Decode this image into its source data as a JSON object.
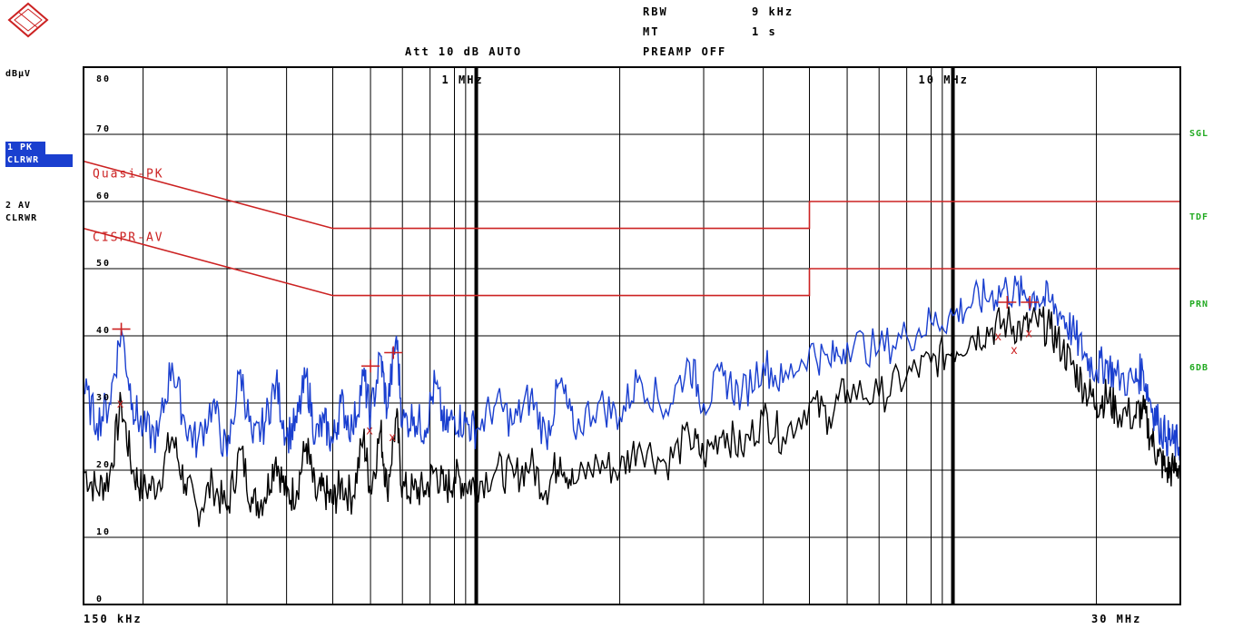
{
  "header": {
    "rbw_label": "RBW",
    "rbw_value": "9 kHz",
    "mt_label": "MT",
    "mt_value": "1 s",
    "att_text": "Att 10 dB AUTO",
    "preamp_text": "PREAMP OFF"
  },
  "left_panel": {
    "unit": "dBµV",
    "trace1_line1": "1 PK",
    "trace1_line2": "CLRWR",
    "trace2_line1": "2 AV",
    "trace2_line2": "CLRWR"
  },
  "right_panel": {
    "sgl": "SGL",
    "tdf": "TDF",
    "prn": "PRN",
    "db6": "6DB"
  },
  "colors": {
    "peak_trace": "#1a3fcf",
    "avg_trace": "#000000",
    "limit": "#cc2222",
    "status": "#22aa22"
  },
  "chart_data": {
    "type": "line",
    "x_scale": "log",
    "xlim_hz": [
      150000,
      30000000
    ],
    "ylim": [
      0,
      80
    ],
    "yticks": [
      0,
      10,
      20,
      30,
      40,
      50,
      60,
      70,
      80
    ],
    "ytick_labels": [
      "0",
      "10",
      "20",
      "30",
      "40",
      "50",
      "60",
      "70",
      "80"
    ],
    "x_start_label": "150 kHz",
    "x_end_label": "30 MHz",
    "x_marks": [
      {
        "freq_hz": 1000000,
        "label": "1 MHz"
      },
      {
        "freq_hz": 10000000,
        "label": "10 MHz"
      }
    ],
    "limit_lines": [
      {
        "name": "Quasi-PK",
        "points": [
          [
            150000,
            66
          ],
          [
            500000,
            56
          ],
          [
            5000000,
            56
          ],
          [
            5000000,
            60
          ],
          [
            30000000,
            60
          ]
        ]
      },
      {
        "name": "CISPR-AV",
        "points": [
          [
            150000,
            56
          ],
          [
            500000,
            46
          ],
          [
            5000000,
            46
          ],
          [
            5000000,
            50
          ],
          [
            30000000,
            50
          ]
        ]
      }
    ],
    "series": [
      {
        "values": [
          [
            150000,
            32
          ],
          [
            160000,
            27
          ],
          [
            170000,
            30
          ],
          [
            180000,
            41
          ],
          [
            190000,
            30
          ],
          [
            200000,
            26
          ],
          [
            215000,
            25
          ],
          [
            230000,
            36
          ],
          [
            245000,
            27
          ],
          [
            260000,
            24
          ],
          [
            280000,
            30
          ],
          [
            300000,
            22
          ],
          [
            320000,
            35
          ],
          [
            340000,
            24
          ],
          [
            360000,
            27
          ],
          [
            380000,
            33
          ],
          [
            400000,
            25
          ],
          [
            420000,
            27
          ],
          [
            440000,
            34
          ],
          [
            460000,
            25
          ],
          [
            480000,
            27
          ],
          [
            500000,
            24
          ],
          [
            520000,
            30
          ],
          [
            550000,
            26
          ],
          [
            580000,
            34
          ],
          [
            600000,
            28
          ],
          [
            630000,
            37
          ],
          [
            650000,
            29
          ],
          [
            680000,
            40
          ],
          [
            700000,
            27
          ],
          [
            740000,
            28
          ],
          [
            780000,
            26
          ],
          [
            820000,
            33
          ],
          [
            860000,
            26
          ],
          [
            900000,
            28
          ],
          [
            950000,
            27
          ],
          [
            1000000,
            26
          ],
          [
            1100000,
            30
          ],
          [
            1200000,
            27
          ],
          [
            1300000,
            31
          ],
          [
            1400000,
            25
          ],
          [
            1500000,
            33
          ],
          [
            1600000,
            26
          ],
          [
            1800000,
            30
          ],
          [
            2000000,
            28
          ],
          [
            2200000,
            34
          ],
          [
            2500000,
            29
          ],
          [
            2800000,
            36
          ],
          [
            3000000,
            30
          ],
          [
            3300000,
            34
          ],
          [
            3600000,
            31
          ],
          [
            4000000,
            36
          ],
          [
            4400000,
            33
          ],
          [
            5000000,
            38
          ],
          [
            5500000,
            36
          ],
          [
            6000000,
            39
          ],
          [
            7000000,
            38
          ],
          [
            8000000,
            40
          ],
          [
            9000000,
            42
          ],
          [
            10000000,
            43
          ],
          [
            11000000,
            45
          ],
          [
            12000000,
            46
          ],
          [
            13000000,
            47
          ],
          [
            14000000,
            46
          ],
          [
            15000000,
            46
          ],
          [
            16000000,
            45
          ],
          [
            17000000,
            43
          ],
          [
            18000000,
            40
          ],
          [
            19000000,
            37
          ],
          [
            20000000,
            35
          ],
          [
            21000000,
            36
          ],
          [
            22000000,
            34
          ],
          [
            24000000,
            33
          ],
          [
            25000000,
            35
          ],
          [
            26000000,
            30
          ],
          [
            27000000,
            27
          ],
          [
            28000000,
            25
          ],
          [
            29000000,
            24
          ],
          [
            30000000,
            24
          ]
        ]
      },
      {
        "values": [
          [
            150000,
            20
          ],
          [
            160000,
            17
          ],
          [
            170000,
            19
          ],
          [
            180000,
            30
          ],
          [
            190000,
            20
          ],
          [
            200000,
            17
          ],
          [
            215000,
            18
          ],
          [
            230000,
            25
          ],
          [
            245000,
            18
          ],
          [
            260000,
            14
          ],
          [
            280000,
            18
          ],
          [
            300000,
            14
          ],
          [
            320000,
            23
          ],
          [
            340000,
            15
          ],
          [
            360000,
            16
          ],
          [
            380000,
            22
          ],
          [
            400000,
            16
          ],
          [
            420000,
            17
          ],
          [
            440000,
            24
          ],
          [
            460000,
            16
          ],
          [
            480000,
            17
          ],
          [
            500000,
            15
          ],
          [
            520000,
            18
          ],
          [
            550000,
            16
          ],
          [
            580000,
            25
          ],
          [
            600000,
            17
          ],
          [
            630000,
            26
          ],
          [
            650000,
            17
          ],
          [
            680000,
            28
          ],
          [
            700000,
            17
          ],
          [
            740000,
            17
          ],
          [
            780000,
            17
          ],
          [
            820000,
            20
          ],
          [
            860000,
            17
          ],
          [
            900000,
            19
          ],
          [
            950000,
            18
          ],
          [
            1000000,
            18
          ],
          [
            1100000,
            20
          ],
          [
            1200000,
            19
          ],
          [
            1300000,
            21
          ],
          [
            1400000,
            17
          ],
          [
            1500000,
            22
          ],
          [
            1600000,
            18
          ],
          [
            1800000,
            21
          ],
          [
            2000000,
            20
          ],
          [
            2200000,
            24
          ],
          [
            2500000,
            21
          ],
          [
            2800000,
            25
          ],
          [
            3000000,
            22
          ],
          [
            3300000,
            26
          ],
          [
            3600000,
            23
          ],
          [
            4000000,
            28
          ],
          [
            4400000,
            25
          ],
          [
            5000000,
            30
          ],
          [
            5500000,
            28
          ],
          [
            6000000,
            32
          ],
          [
            7000000,
            31
          ],
          [
            8000000,
            34
          ],
          [
            9000000,
            36
          ],
          [
            10000000,
            38
          ],
          [
            11000000,
            40
          ],
          [
            12000000,
            41
          ],
          [
            13000000,
            42
          ],
          [
            14000000,
            41
          ],
          [
            15000000,
            42
          ],
          [
            16000000,
            41
          ],
          [
            17000000,
            38
          ],
          [
            18000000,
            35
          ],
          [
            19000000,
            32
          ],
          [
            20000000,
            30
          ],
          [
            21000000,
            31
          ],
          [
            22000000,
            29
          ],
          [
            24000000,
            28
          ],
          [
            25000000,
            29
          ],
          [
            26000000,
            25
          ],
          [
            27000000,
            22
          ],
          [
            28000000,
            20
          ],
          [
            29000000,
            20
          ],
          [
            30000000,
            21
          ]
        ]
      }
    ],
    "markers_plus": [
      [
        180000,
        41
      ],
      [
        600000,
        35.5
      ],
      [
        670000,
        37.5
      ],
      [
        13000000,
        45
      ],
      [
        14500000,
        45
      ]
    ],
    "markers_x": [
      [
        180000,
        30
      ],
      [
        600000,
        26
      ],
      [
        670000,
        25
      ],
      [
        12500000,
        40
      ],
      [
        13500000,
        38
      ],
      [
        14500000,
        40.5
      ]
    ]
  }
}
